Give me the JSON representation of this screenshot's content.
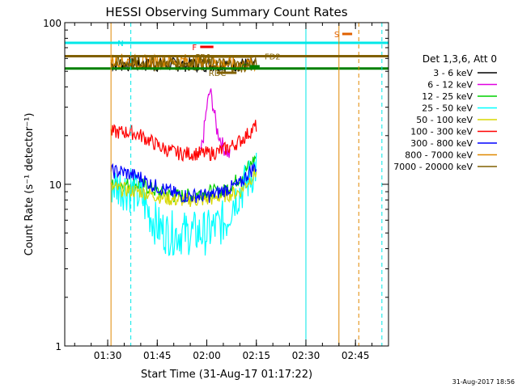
{
  "chart_data": {
    "type": "line",
    "title": "HESSI Observing Summary Count Rates",
    "xlabel": "Start Time (31-Aug-17 01:17:22)",
    "ylabel": "Count Rate (s⁻¹ detector⁻¹)",
    "y_scale": "log",
    "ylim": [
      1,
      100
    ],
    "xlim": [
      "01:17",
      "02:55"
    ],
    "x_ticks": [
      "01:30",
      "01:45",
      "02:00",
      "02:15",
      "02:30",
      "02:45"
    ],
    "y_ticks": [
      "1",
      "10",
      "100"
    ],
    "legend_title": "Det 1,3,6, Att 0",
    "legend_position": "right",
    "series": [
      {
        "name": "3 - 6 keV",
        "color": "#000000",
        "x": [
          "01:31",
          "01:34",
          "01:37",
          "01:40",
          "01:43",
          "01:46",
          "01:49",
          "01:52",
          "01:55",
          "01:58",
          "02:01",
          "02:04",
          "02:07",
          "02:10",
          "02:13",
          "02:15"
        ],
        "values": [
          55,
          55,
          55,
          55,
          55,
          55,
          55,
          55,
          55,
          55,
          55,
          55,
          55,
          55,
          55,
          55
        ]
      },
      {
        "name": "6 - 12 keV",
        "color": "#e000e0",
        "x": [
          "01:58",
          "01:59",
          "02:00",
          "02:01",
          "02:02",
          "02:03",
          "02:05",
          "02:07"
        ],
        "values": [
          15,
          20,
          30,
          38,
          30,
          22,
          17,
          15
        ]
      },
      {
        "name": "12 - 25 keV",
        "color": "#00d000",
        "x": [
          "01:31",
          "01:35",
          "01:40",
          "01:45",
          "01:50",
          "01:55",
          "02:00",
          "02:05",
          "02:10",
          "02:13",
          "02:15"
        ],
        "values": [
          10,
          10,
          10,
          9,
          8.5,
          8.5,
          9,
          9,
          11,
          13,
          15
        ]
      },
      {
        "name": "25 - 50 keV",
        "color": "#00ffff",
        "x": [
          "01:31",
          "01:35",
          "01:40",
          "01:42",
          "01:45",
          "01:48",
          "01:51",
          "01:54",
          "01:57",
          "02:00",
          "02:03",
          "02:06",
          "02:08",
          "02:11",
          "02:13",
          "02:15"
        ],
        "values": [
          10,
          9.5,
          8.5,
          7,
          5.5,
          5,
          5,
          5,
          5,
          5,
          5.5,
          6,
          8,
          9.5,
          11,
          13
        ]
      },
      {
        "name": "50 - 100 keV",
        "color": "#d8d800",
        "x": [
          "01:31",
          "01:40",
          "01:50",
          "02:00",
          "02:10",
          "02:15"
        ],
        "values": [
          9.5,
          9,
          8,
          8,
          9,
          12
        ]
      },
      {
        "name": "100 - 300 keV",
        "color": "#ff0000",
        "x": [
          "01:31",
          "01:34",
          "01:37",
          "01:40",
          "01:43",
          "01:46",
          "01:49",
          "01:52",
          "01:55",
          "01:58",
          "02:01",
          "02:04",
          "02:07",
          "02:10",
          "02:13",
          "02:15"
        ],
        "values": [
          21,
          21,
          21,
          20,
          18.5,
          17,
          16,
          15.5,
          15.5,
          15.5,
          15.5,
          16,
          17,
          18.5,
          21,
          23
        ]
      },
      {
        "name": "300 - 800 keV",
        "color": "#0000ff",
        "x": [
          "01:31",
          "01:34",
          "01:37",
          "01:40",
          "01:43",
          "01:46",
          "01:49",
          "01:52",
          "01:55",
          "01:58",
          "02:01",
          "02:04",
          "02:07",
          "02:10",
          "02:13",
          "02:15"
        ],
        "values": [
          12,
          12,
          11.5,
          11,
          10,
          9.5,
          9,
          8.5,
          8.5,
          8.5,
          8.5,
          9,
          9.5,
          10,
          12,
          13
        ]
      },
      {
        "name": "800 - 7000 keV",
        "color": "#e08800",
        "x": [
          "01:31",
          "01:35",
          "01:40",
          "01:45",
          "01:50",
          "01:55",
          "02:00",
          "02:05",
          "02:10",
          "02:15"
        ],
        "values": [
          58,
          58,
          57,
          57,
          58,
          58,
          57,
          56,
          55,
          55
        ]
      },
      {
        "name": "7000 - 20000 keV",
        "color": "#806000",
        "x": [
          "01:31",
          "01:35",
          "01:40",
          "01:45",
          "01:50",
          "01:55",
          "02:00",
          "02:05",
          "02:10",
          "02:15"
        ],
        "values": [
          56,
          56,
          56,
          56,
          56,
          56,
          56,
          55,
          54,
          55
        ]
      }
    ],
    "flags": [
      {
        "label": "N",
        "color": "#00e8e8",
        "x_start": "01:17",
        "x_end": "01:32"
      },
      {
        "label": "S",
        "color": "#e06000",
        "x_start": "02:41",
        "x_end": "02:44"
      },
      {
        "label": "F",
        "color": "#ee0000",
        "x_start": "01:58",
        "x_end": "02:02"
      },
      {
        "label": "FD1",
        "color": "#806000",
        "x_start": "01:59",
        "x_end": "02:14"
      },
      {
        "label": "FD2",
        "color": "#806000",
        "x_start": "02:16",
        "x_end": "02:55"
      },
      {
        "label": "RDC",
        "color": "#806000",
        "x_start": "02:03",
        "x_end": "02:09"
      },
      {
        "label": "C",
        "color": "#008000",
        "x_start": "02:13",
        "x_end": "02:16"
      }
    ],
    "vertical_lines": [
      {
        "color": "#00e8e8",
        "style": "solid",
        "x": "02:30"
      },
      {
        "color": "#00e8e8",
        "style": "dashed",
        "x": "01:37"
      },
      {
        "color": "#00e8e8",
        "style": "dashed",
        "x": "02:53"
      },
      {
        "color": "#e08800",
        "style": "solid",
        "x": "01:31"
      },
      {
        "color": "#e08800",
        "style": "solid",
        "x": "02:40"
      },
      {
        "color": "#e08800",
        "style": "dashed",
        "x": "02:46"
      }
    ],
    "horizontal_levels": [
      {
        "color": "#00e8e8",
        "value": 75
      },
      {
        "color": "#806000",
        "value": 62
      },
      {
        "color": "#008000",
        "value": 52
      }
    ]
  },
  "footer_date": "31-Aug-2017 18:56"
}
